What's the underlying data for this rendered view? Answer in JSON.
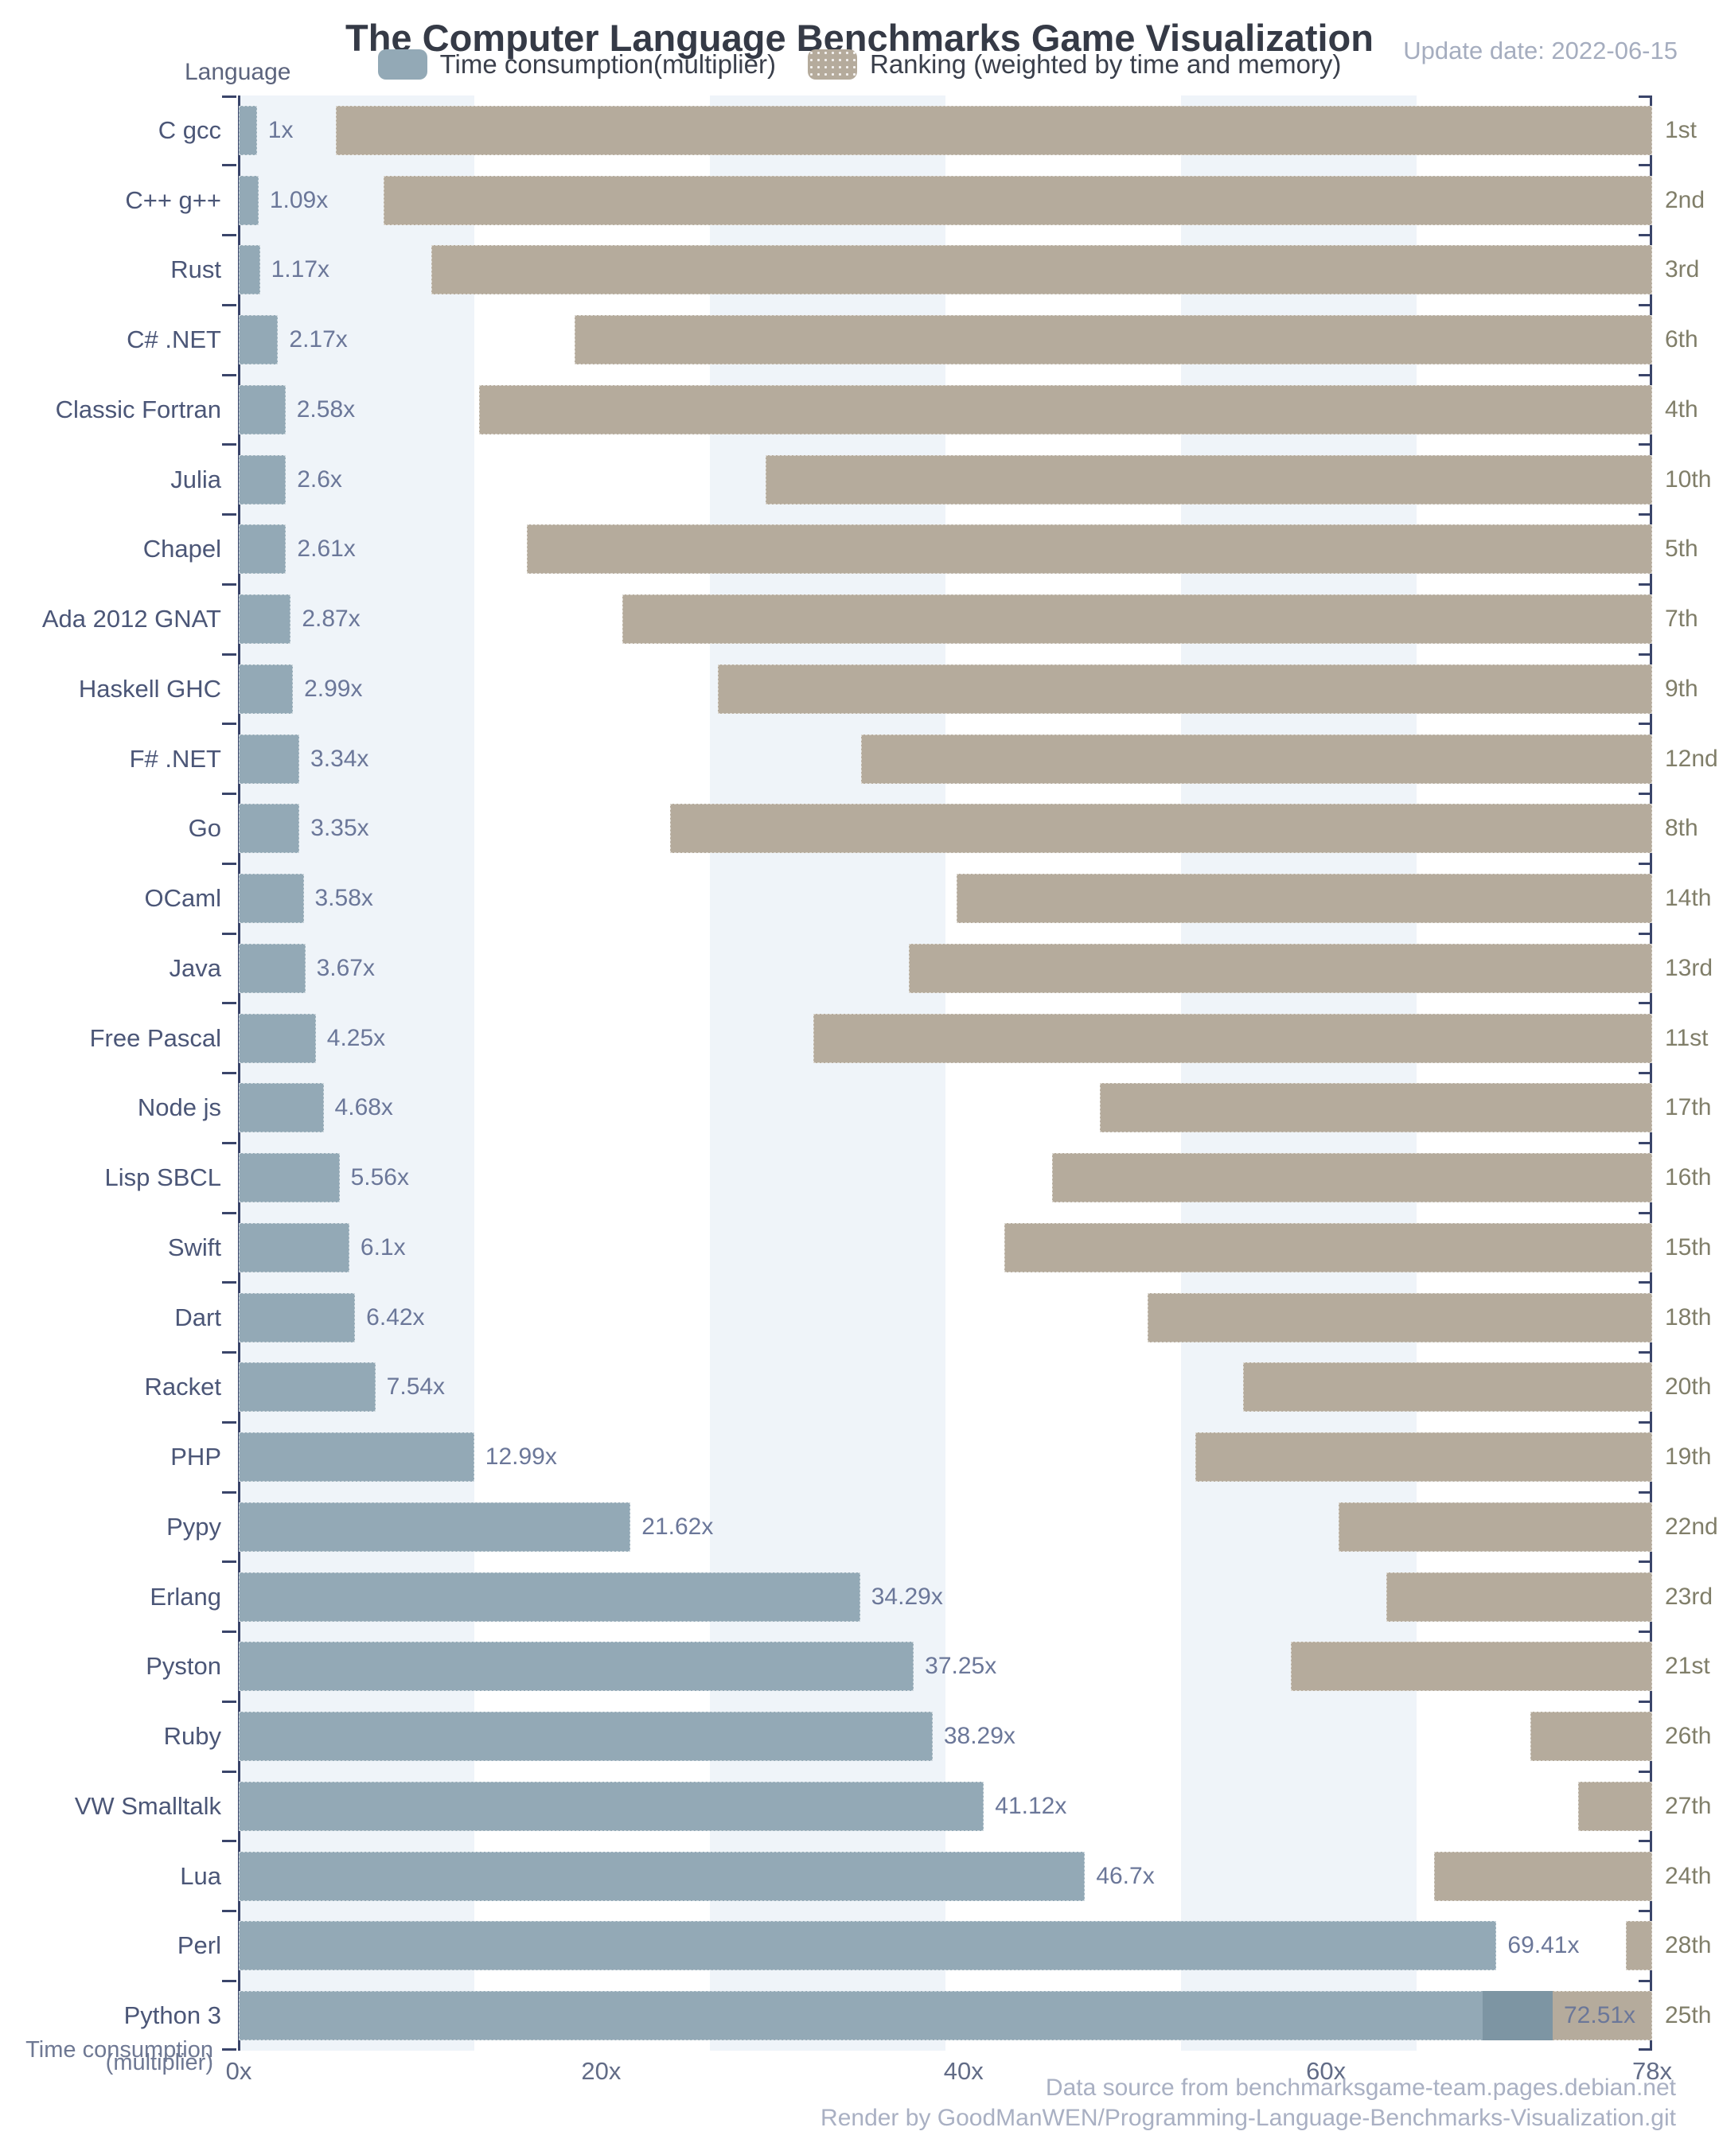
{
  "header": {
    "title": "The Computer Language Benchmarks Game Visualization",
    "y_axis_name": "Language",
    "update_date": "Update date: 2022-06-15",
    "legend": [
      {
        "label": "Time consumption(multiplier)",
        "color": "#93a9b6"
      },
      {
        "label": "Ranking (weighted by time and memory)",
        "color": "#b5ab9c"
      }
    ]
  },
  "footer": {
    "data_source": "Data source from benchmarksgame-team.pages.debian.net",
    "render_credit": "Render by GoodManWEN/Programming-Language-Benchmarks-Visualization.git"
  },
  "chart_data": {
    "type": "bar",
    "orientation": "horizontal",
    "title": "The Computer Language Benchmarks Game Visualization",
    "update_date": "2022-06-15",
    "categories": [
      "C gcc",
      "C++ g++",
      "Rust",
      "C# .NET",
      "Classic Fortran",
      "Julia",
      "Chapel",
      "Ada 2012 GNAT",
      "Haskell GHC",
      "F# .NET",
      "Go",
      "OCaml",
      "Java",
      "Free Pascal",
      "Node js",
      "Lisp SBCL",
      "Swift",
      "Dart",
      "Racket",
      "PHP",
      "Pypy",
      "Erlang",
      "Pyston",
      "Ruby",
      "VW Smalltalk",
      "Lua",
      "Perl",
      "Python 3"
    ],
    "series": [
      {
        "name": "Time consumption(multiplier)",
        "unit": "x",
        "values": [
          1,
          1.09,
          1.17,
          2.17,
          2.58,
          2.6,
          2.61,
          2.87,
          2.99,
          3.34,
          3.35,
          3.58,
          3.67,
          4.25,
          4.68,
          5.56,
          6.1,
          6.42,
          7.54,
          12.99,
          21.62,
          34.29,
          37.25,
          38.29,
          41.12,
          46.7,
          69.41,
          72.51
        ],
        "labels": [
          "1x",
          "1.09x",
          "1.17x",
          "2.17x",
          "2.58x",
          "2.6x",
          "2.61x",
          "2.87x",
          "2.99x",
          "3.34x",
          "3.35x",
          "3.58x",
          "3.67x",
          "4.25x",
          "4.68x",
          "5.56x",
          "6.1x",
          "6.42x",
          "7.54x",
          "12.99x",
          "21.62x",
          "34.29x",
          "37.25x",
          "38.29x",
          "41.12x",
          "46.7x",
          "69.41x",
          "72.51x"
        ]
      },
      {
        "name": "Ranking (weighted by time and memory)",
        "rank_numbers": [
          1,
          2,
          3,
          6,
          4,
          10,
          5,
          7,
          9,
          12,
          8,
          14,
          13,
          11,
          17,
          16,
          15,
          18,
          20,
          19,
          22,
          23,
          21,
          26,
          27,
          24,
          28,
          25
        ],
        "rank_labels": [
          "1st",
          "2nd",
          "3rd",
          "6th",
          "4th",
          "10th",
          "5th",
          "7th",
          "9th",
          "12nd",
          "8th",
          "14th",
          "13rd",
          "11st",
          "17th",
          "16th",
          "15th",
          "18th",
          "20th",
          "19th",
          "22nd",
          "23rd",
          "21st",
          "26th",
          "27th",
          "24th",
          "28th",
          "25th"
        ]
      }
    ],
    "x_axis": {
      "name_lines": [
        "Time consumption",
        "(multiplier)"
      ],
      "ticks": [
        "0x",
        "20x",
        "40x",
        "60x",
        "78x"
      ],
      "tick_values": [
        0,
        20,
        40,
        60,
        78
      ],
      "min": 0,
      "max": 78,
      "grid_bands": {
        "interval_x": 13,
        "colors": [
          "#eff4f9",
          "#ffffff"
        ]
      }
    },
    "ranking_bar_geometry": {
      "start_at_rank1_x": 5.36,
      "step_x": 2.636,
      "end_x": 78
    },
    "colors": {
      "time_bar": "#93a9b6",
      "ranking_bar": "#b5ab9c",
      "overlap": "#7d95a3",
      "axis": "#3a456a",
      "category_label": "#4b5677",
      "value_label": "#6b7799",
      "rank_label": "#807e69"
    },
    "legend_position": "top-center",
    "grid": "vertical-split-bands"
  }
}
